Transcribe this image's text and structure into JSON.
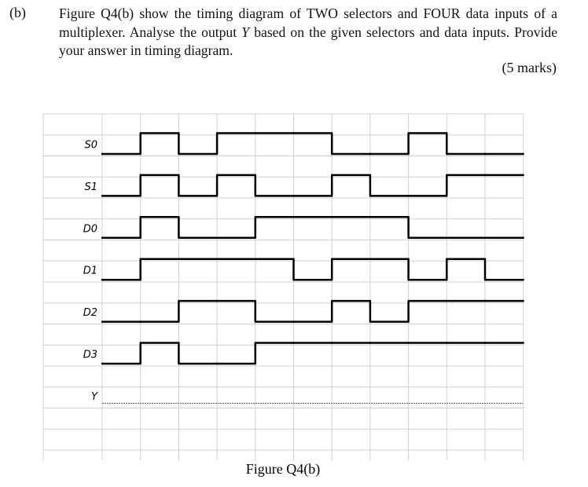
{
  "question": {
    "label": "(b)",
    "text_before": "Figure Q4(b) show the timing diagram of TWO selectors and FOUR data inputs of a multiplexer. Analyse the output ",
    "variable": "Y",
    "text_after": " based on the given selectors and data inputs. Provide your answer in timing diagram.",
    "marks": "(5 marks)"
  },
  "diagram": {
    "caption": "Figure Q4(b)",
    "signals": [
      {
        "name": "S0",
        "levels": [
          0,
          1,
          0,
          1,
          1,
          1,
          0,
          0,
          1,
          0,
          0
        ]
      },
      {
        "name": "S1",
        "levels": [
          0,
          1,
          0,
          1,
          0,
          0,
          1,
          0,
          0,
          1,
          1
        ]
      },
      {
        "name": "D0",
        "levels": [
          0,
          1,
          0,
          0,
          1,
          1,
          1,
          1,
          0,
          0,
          0
        ]
      },
      {
        "name": "D1",
        "levels": [
          0,
          1,
          1,
          1,
          1,
          0,
          1,
          1,
          0,
          1,
          0
        ]
      },
      {
        "name": "D2",
        "levels": [
          0,
          0,
          1,
          1,
          0,
          0,
          1,
          0,
          1,
          1,
          1
        ]
      },
      {
        "name": "D3",
        "levels": [
          0,
          1,
          0,
          0,
          1,
          1,
          1,
          1,
          1,
          1,
          1
        ]
      },
      {
        "name": "Y",
        "levels": []
      }
    ]
  }
}
